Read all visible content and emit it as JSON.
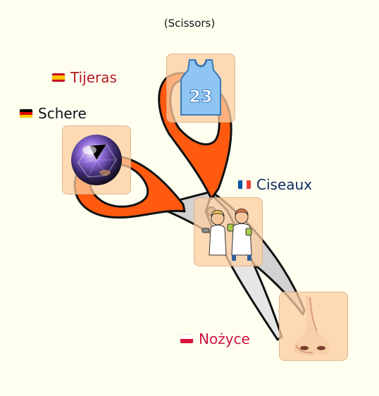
{
  "prompt": {
    "text": "(Scissors)"
  },
  "labels": [
    {
      "id": "es",
      "text": "Tijeras",
      "color": "#b41b1b"
    },
    {
      "id": "de",
      "text": "Schere",
      "color": "#111111"
    },
    {
      "id": "fr",
      "text": "Ciseaux",
      "color": "#0f2a5a"
    },
    {
      "id": "pl",
      "text": "Nożyce",
      "color": "#d0143c"
    }
  ],
  "tiles": [
    {
      "id": "jersey",
      "icon": "basketball-jersey-icon",
      "number": "23"
    },
    {
      "id": "orb",
      "icon": "crystal-orb-icon"
    },
    {
      "id": "people",
      "icon": "people-exercising-icon"
    },
    {
      "id": "nose",
      "icon": "nose-icon"
    }
  ],
  "colors": {
    "background": "#fffff0",
    "tile": "#fccda0",
    "scissor_handle": "#ff5a0f",
    "scissor_blade": "#cfcfcf"
  }
}
